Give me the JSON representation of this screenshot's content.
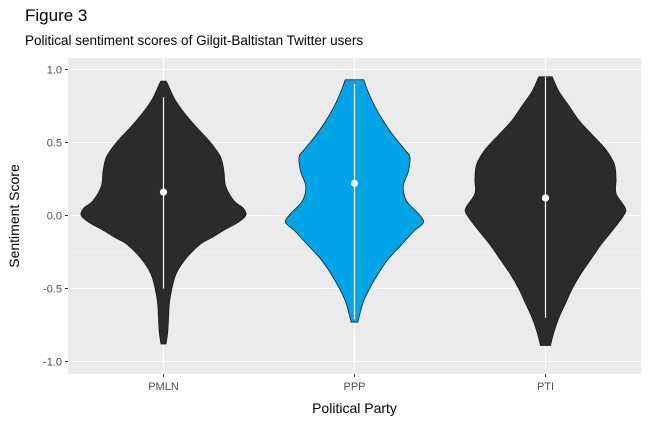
{
  "figure_label": "Figure 3",
  "subtitle": "Political sentiment scores of Gilgit-Baltistan Twitter users",
  "chart_data": {
    "type": "violin",
    "title": "Figure 3",
    "subtitle": "Political sentiment scores of Gilgit-Baltistan Twitter users",
    "xlabel": "Political Party",
    "ylabel": "Sentiment Score",
    "ylim": [
      -1.1,
      1.1
    ],
    "y_ticks": [
      -1.0,
      -0.5,
      0.0,
      0.5,
      1.0
    ],
    "y_tick_labels": [
      "-1.0",
      "-0.5",
      "0.0",
      "0.5",
      "1.0"
    ],
    "categories": [
      "PMLN",
      "PPP",
      "PTI"
    ],
    "grid": true,
    "background": "#ebebeb",
    "series": [
      {
        "category": "PMLN",
        "fill": "#2b2b2b",
        "mean": 0.16,
        "line_range": [
          -0.5,
          0.81
        ],
        "violin_range": [
          -0.88,
          0.92
        ],
        "density_profile": [
          [
            -0.88,
            0.03
          ],
          [
            -0.8,
            0.05
          ],
          [
            -0.7,
            0.06
          ],
          [
            -0.6,
            0.07
          ],
          [
            -0.5,
            0.1
          ],
          [
            -0.4,
            0.15
          ],
          [
            -0.3,
            0.26
          ],
          [
            -0.2,
            0.43
          ],
          [
            -0.15,
            0.58
          ],
          [
            -0.1,
            0.72
          ],
          [
            -0.05,
            0.88
          ],
          [
            0.0,
            0.98
          ],
          [
            0.05,
            0.95
          ],
          [
            0.1,
            0.84
          ],
          [
            0.2,
            0.74
          ],
          [
            0.3,
            0.72
          ],
          [
            0.4,
            0.68
          ],
          [
            0.5,
            0.56
          ],
          [
            0.6,
            0.4
          ],
          [
            0.7,
            0.25
          ],
          [
            0.8,
            0.13
          ],
          [
            0.9,
            0.05
          ],
          [
            0.92,
            0.03
          ]
        ]
      },
      {
        "category": "PPP",
        "fill": "#00a5e8",
        "mean": 0.22,
        "line_range": [
          -0.71,
          0.9
        ],
        "violin_range": [
          -0.73,
          0.93
        ],
        "density_profile": [
          [
            -0.73,
            0.04
          ],
          [
            -0.6,
            0.1
          ],
          [
            -0.5,
            0.18
          ],
          [
            -0.4,
            0.28
          ],
          [
            -0.3,
            0.4
          ],
          [
            -0.2,
            0.56
          ],
          [
            -0.1,
            0.72
          ],
          [
            -0.05,
            0.82
          ],
          [
            0.0,
            0.78
          ],
          [
            0.1,
            0.62
          ],
          [
            0.2,
            0.58
          ],
          [
            0.3,
            0.64
          ],
          [
            0.4,
            0.66
          ],
          [
            0.45,
            0.6
          ],
          [
            0.55,
            0.46
          ],
          [
            0.65,
            0.34
          ],
          [
            0.75,
            0.24
          ],
          [
            0.85,
            0.16
          ],
          [
            0.93,
            0.11
          ]
        ]
      },
      {
        "category": "PTI",
        "fill": "#2b2b2b",
        "mean": 0.12,
        "line_range": [
          -0.7,
          0.95
        ],
        "violin_range": [
          -0.89,
          0.95
        ],
        "density_profile": [
          [
            -0.89,
            0.06
          ],
          [
            -0.8,
            0.1
          ],
          [
            -0.7,
            0.16
          ],
          [
            -0.6,
            0.24
          ],
          [
            -0.5,
            0.32
          ],
          [
            -0.4,
            0.42
          ],
          [
            -0.3,
            0.54
          ],
          [
            -0.2,
            0.66
          ],
          [
            -0.1,
            0.8
          ],
          [
            0.0,
            0.93
          ],
          [
            0.05,
            0.95
          ],
          [
            0.15,
            0.84
          ],
          [
            0.25,
            0.84
          ],
          [
            0.35,
            0.82
          ],
          [
            0.45,
            0.72
          ],
          [
            0.55,
            0.56
          ],
          [
            0.65,
            0.4
          ],
          [
            0.75,
            0.28
          ],
          [
            0.85,
            0.16
          ],
          [
            0.95,
            0.08
          ]
        ]
      }
    ]
  }
}
